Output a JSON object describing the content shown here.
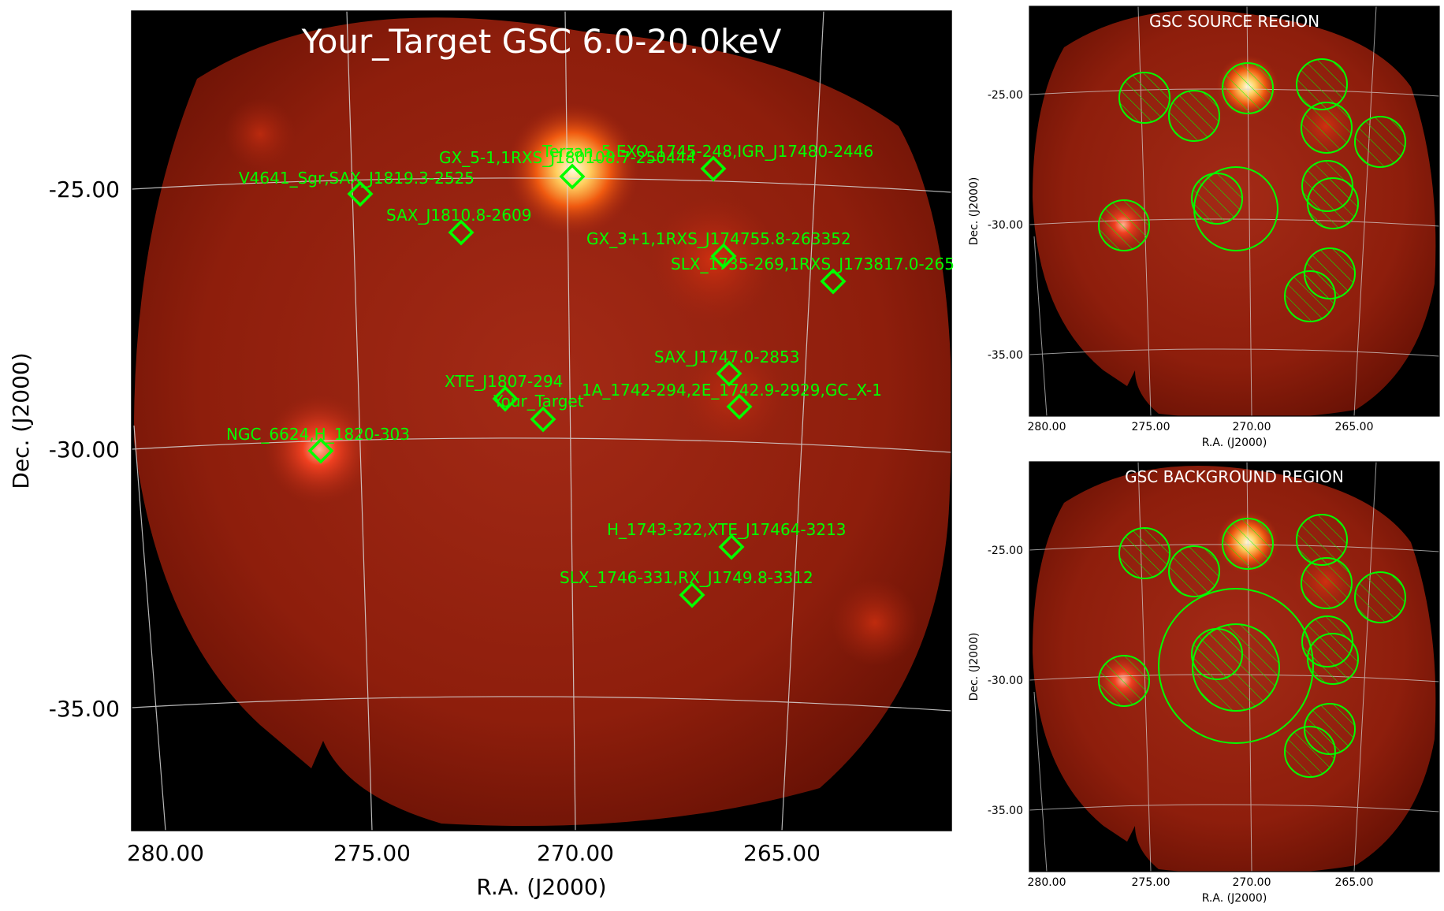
{
  "main_panel": {
    "title": "Your_Target GSC 6.0-20.0keV",
    "xlabel": "R.A. (J2000)",
    "ylabel": "Dec. (J2000)",
    "x_ticks": [
      "280.00",
      "275.00",
      "270.00",
      "265.00"
    ],
    "y_ticks": [
      "-25.00",
      "-30.00",
      "-35.00"
    ],
    "sources": [
      {
        "label": "V4641_Sgr,SAX_J1819.3-2525",
        "ra": 274.8,
        "dec": -25.1
      },
      {
        "label": "GX_5-1,1RXS_J180108.7-250444",
        "ra": 270.3,
        "dec": -24.75
      },
      {
        "label": "Terzan_5,EXO_1745-248,IGR_J17480-2446",
        "ra": 267.1,
        "dec": -24.6
      },
      {
        "label": "SAX_J1810.8-2609",
        "ra": 272.6,
        "dec": -25.8
      },
      {
        "label": "GX_3+1,1RXS_J174755.8-263352",
        "ra": 266.8,
        "dec": -26.4
      },
      {
        "label": "SLX_1735-269,1RXS_J173817.0-265",
        "ra": 264.6,
        "dec": -26.8
      },
      {
        "label": "SAX_J1747.0-2853",
        "ra": 266.6,
        "dec": -28.5
      },
      {
        "label": "XTE_J1807-294",
        "ra": 271.8,
        "dec": -29.0
      },
      {
        "label": "1A_1742-294,2E_1742.9-2929,GC_X-1",
        "ra": 266.1,
        "dec": -29.1
      },
      {
        "label": "Your_Target",
        "ra": 271.0,
        "dec": -29.4
      },
      {
        "label": "NGC_6624,H_1820-303",
        "ra": 276.1,
        "dec": -30.0
      },
      {
        "label": "H_1743-322,XTE_J17464-3213",
        "ra": 266.2,
        "dec": -32.2
      },
      {
        "label": "SLX_1746-331,RX_J1749.8-3312",
        "ra": 267.3,
        "dec": -33.1
      }
    ]
  },
  "source_panel": {
    "title": "GSC SOURCE REGION",
    "xlabel": "R.A. (J2000)",
    "ylabel": "Dec. (J2000)",
    "x_ticks": [
      "280.00",
      "275.00",
      "270.00",
      "265.00"
    ],
    "y_ticks": [
      "-25.00",
      "-30.00",
      "-35.00"
    ]
  },
  "background_panel": {
    "title": "GSC BACKGROUND REGION",
    "xlabel": "R.A. (J2000)",
    "ylabel": "Dec. (J2000)",
    "x_ticks": [
      "280.00",
      "275.00",
      "270.00",
      "265.00"
    ],
    "y_ticks": [
      "-25.00",
      "-30.00",
      "-35.00"
    ]
  },
  "colors": {
    "background": "#8b1a0a",
    "frame_bg": "#000000",
    "marker": "#00ff00",
    "grid": "#d8d8d8",
    "bright_source": "#fff3c0"
  }
}
